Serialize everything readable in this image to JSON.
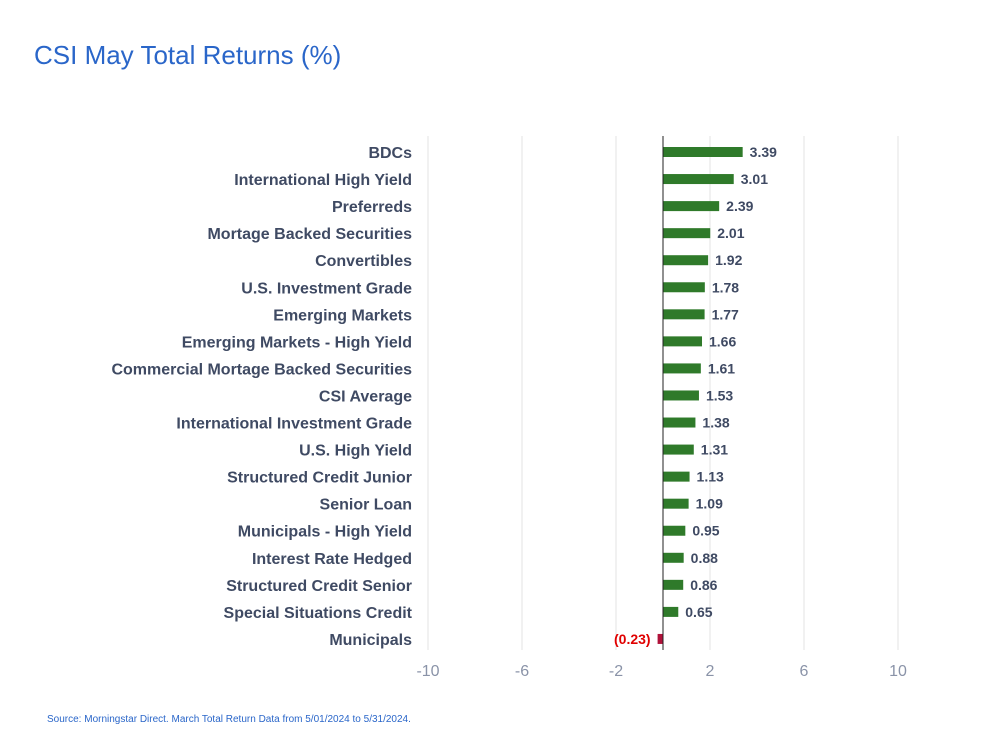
{
  "title": "CSI May Total Returns (%)",
  "source": "Source: Morningstar Direct. March Total Return Data from 5/01/2024 to 5/31/2024.",
  "colors": {
    "positive": "#2f7a2a",
    "negative": "#b0123a",
    "negative_label": "#e00000",
    "title": "#2a66c9",
    "grid": "#e3e3e3"
  },
  "chart_data": {
    "type": "bar",
    "orientation": "horizontal",
    "title": "CSI May Total Returns (%)",
    "xlabel": "",
    "ylabel": "",
    "xlim": [
      -10,
      12
    ],
    "xticks": [
      -10,
      -6,
      -2,
      2,
      6,
      10
    ],
    "xtick_labels": [
      "-10",
      "-6",
      "-2",
      "2",
      "6",
      "10"
    ],
    "grid": true,
    "categories": [
      "BDCs",
      "International High Yield",
      "Preferreds",
      "Mortage Backed Securities",
      "Convertibles",
      "U.S. Investment Grade",
      "Emerging Markets",
      "Emerging Markets - High Yield",
      "Commercial Mortage Backed Securities",
      "CSI Average",
      "International Investment Grade",
      "U.S. High Yield",
      "Structured Credit Junior",
      "Senior Loan",
      "Municipals - High Yield",
      "Interest Rate Hedged",
      "Structured Credit Senior",
      "Special Situations Credit",
      "Municipals"
    ],
    "values": [
      3.39,
      3.01,
      2.39,
      2.01,
      1.92,
      1.78,
      1.77,
      1.66,
      1.61,
      1.53,
      1.38,
      1.31,
      1.13,
      1.09,
      0.95,
      0.88,
      0.86,
      0.65,
      -0.23
    ],
    "value_labels": [
      "3.39",
      "3.01",
      "2.39",
      "2.01",
      "1.92",
      "1.78",
      "1.77",
      "1.66",
      "1.61",
      "1.53",
      "1.38",
      "1.31",
      "1.13",
      "1.09",
      "0.95",
      "0.88",
      "0.86",
      "0.65",
      "(0.23)"
    ]
  }
}
